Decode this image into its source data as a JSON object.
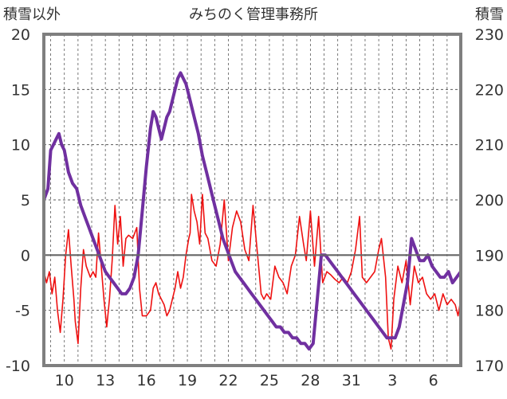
{
  "chart_data": {
    "type": "line",
    "title": "みちのく管理事務所",
    "left_axis_label": "積雪以外",
    "right_axis_label": "積雪",
    "left_ylim": [
      -10,
      20
    ],
    "right_ylim": [
      170,
      230
    ],
    "left_ticks": [
      "20",
      "15",
      "10",
      "5",
      "0",
      "-5",
      "-10"
    ],
    "right_ticks": [
      "230",
      "220",
      "210",
      "200",
      "190",
      "180",
      "170"
    ],
    "x_ticks": [
      "10",
      "13",
      "16",
      "19",
      "22",
      "25",
      "28",
      "31",
      "3",
      "6"
    ],
    "x_tick_days": [
      1.5,
      4.5,
      7.5,
      10.5,
      13.5,
      16.5,
      19.5,
      22.5,
      25.5,
      28.5
    ],
    "x_range_days": [
      0,
      30.5
    ],
    "grid": true,
    "colors": {
      "temperature": "#ee1111",
      "snow_depth": "#7030a0",
      "axis": "#7f7f7f",
      "grid": "#595959"
    },
    "series": [
      {
        "name": "積雪以外",
        "axis": "left",
        "points": [
          [
            0.0,
            -1.5
          ],
          [
            0.2,
            -2.5
          ],
          [
            0.4,
            -1.5
          ],
          [
            0.6,
            -3.5
          ],
          [
            0.8,
            -2.0
          ],
          [
            1.0,
            -5.0
          ],
          [
            1.2,
            -7.0
          ],
          [
            1.4,
            -4.0
          ],
          [
            1.6,
            0.0
          ],
          [
            1.8,
            2.3
          ],
          [
            2.0,
            -1.0
          ],
          [
            2.2,
            -4.0
          ],
          [
            2.3,
            -6.0
          ],
          [
            2.5,
            -8.0
          ],
          [
            2.7,
            -3.0
          ],
          [
            2.9,
            0.5
          ],
          [
            3.1,
            -1.0
          ],
          [
            3.4,
            -2.0
          ],
          [
            3.6,
            -1.5
          ],
          [
            3.8,
            -2.0
          ],
          [
            4.0,
            2.0
          ],
          [
            4.2,
            -1.0
          ],
          [
            4.4,
            -4.0
          ],
          [
            4.6,
            -6.5
          ],
          [
            4.8,
            -4.0
          ],
          [
            5.0,
            -0.5
          ],
          [
            5.2,
            4.5
          ],
          [
            5.4,
            1.0
          ],
          [
            5.6,
            3.5
          ],
          [
            5.8,
            -1.0
          ],
          [
            6.0,
            1.5
          ],
          [
            6.2,
            1.8
          ],
          [
            6.5,
            1.5
          ],
          [
            6.8,
            2.5
          ],
          [
            7.0,
            -3.0
          ],
          [
            7.2,
            -5.5
          ],
          [
            7.5,
            -5.5
          ],
          [
            7.8,
            -5.0
          ],
          [
            8.0,
            -3.0
          ],
          [
            8.2,
            -2.5
          ],
          [
            8.4,
            -3.5
          ],
          [
            8.6,
            -4.0
          ],
          [
            8.8,
            -4.5
          ],
          [
            9.0,
            -5.5
          ],
          [
            9.2,
            -5.0
          ],
          [
            9.4,
            -4.0
          ],
          [
            9.6,
            -3.0
          ],
          [
            9.8,
            -1.5
          ],
          [
            10.0,
            -3.0
          ],
          [
            10.2,
            -2.0
          ],
          [
            10.4,
            0.0
          ],
          [
            10.6,
            1.5
          ],
          [
            10.7,
            2.0
          ],
          [
            10.8,
            5.5
          ],
          [
            11.0,
            4.0
          ],
          [
            11.2,
            3.0
          ],
          [
            11.4,
            1.0
          ],
          [
            11.6,
            5.5
          ],
          [
            11.8,
            2.0
          ],
          [
            12.0,
            1.5
          ],
          [
            12.3,
            -0.5
          ],
          [
            12.6,
            -1.0
          ],
          [
            12.9,
            1.0
          ],
          [
            13.2,
            5.0
          ],
          [
            13.5,
            -0.5
          ],
          [
            13.8,
            2.5
          ],
          [
            14.1,
            4.0
          ],
          [
            14.4,
            3.0
          ],
          [
            14.7,
            0.5
          ],
          [
            15.0,
            -0.5
          ],
          [
            15.3,
            4.5
          ],
          [
            15.6,
            0.5
          ],
          [
            15.9,
            -3.5
          ],
          [
            16.1,
            -4.0
          ],
          [
            16.3,
            -3.5
          ],
          [
            16.6,
            -4.0
          ],
          [
            16.9,
            -1.0
          ],
          [
            17.2,
            -2.0
          ],
          [
            17.5,
            -2.5
          ],
          [
            17.8,
            -3.5
          ],
          [
            18.1,
            -1.0
          ],
          [
            18.4,
            0.0
          ],
          [
            18.7,
            3.5
          ],
          [
            19.0,
            1.0
          ],
          [
            19.2,
            -0.5
          ],
          [
            19.5,
            4.0
          ],
          [
            19.8,
            -1.0
          ],
          [
            20.1,
            3.5
          ],
          [
            20.4,
            -2.5
          ],
          [
            20.7,
            -1.5
          ],
          [
            21.0,
            -1.8
          ],
          [
            21.3,
            -2.2
          ],
          [
            21.6,
            -2.5
          ],
          [
            21.9,
            -2.0
          ],
          [
            22.2,
            -2.5
          ],
          [
            22.5,
            -1.5
          ],
          [
            22.8,
            0.5
          ],
          [
            23.1,
            3.5
          ],
          [
            23.3,
            -2.0
          ],
          [
            23.6,
            -2.5
          ],
          [
            23.9,
            -2.0
          ],
          [
            24.2,
            -1.5
          ],
          [
            24.5,
            0.5
          ],
          [
            24.7,
            1.5
          ],
          [
            25.0,
            -2.0
          ],
          [
            25.2,
            -7.5
          ],
          [
            25.4,
            -8.5
          ],
          [
            25.6,
            -4.0
          ],
          [
            25.9,
            -1.0
          ],
          [
            26.2,
            -2.5
          ],
          [
            26.5,
            -0.5
          ],
          [
            26.8,
            -4.5
          ],
          [
            27.1,
            -1.0
          ],
          [
            27.4,
            -2.5
          ],
          [
            27.7,
            -2.0
          ],
          [
            28.0,
            -3.5
          ],
          [
            28.3,
            -4.0
          ],
          [
            28.6,
            -3.5
          ],
          [
            28.9,
            -5.0
          ],
          [
            29.2,
            -3.5
          ],
          [
            29.5,
            -4.5
          ],
          [
            29.8,
            -4.0
          ],
          [
            30.1,
            -4.5
          ],
          [
            30.3,
            -5.5
          ],
          [
            30.5,
            -4.0
          ]
        ]
      },
      {
        "name": "積雪",
        "axis": "right",
        "points": [
          [
            0.0,
            200
          ],
          [
            0.3,
            202
          ],
          [
            0.5,
            209
          ],
          [
            0.7,
            210
          ],
          [
            0.9,
            211
          ],
          [
            1.1,
            212
          ],
          [
            1.3,
            210
          ],
          [
            1.5,
            209
          ],
          [
            1.8,
            205
          ],
          [
            2.1,
            203
          ],
          [
            2.4,
            202
          ],
          [
            2.7,
            199
          ],
          [
            3.0,
            197
          ],
          [
            3.3,
            195
          ],
          [
            3.6,
            193
          ],
          [
            3.9,
            191
          ],
          [
            4.2,
            189
          ],
          [
            4.5,
            187
          ],
          [
            4.8,
            186
          ],
          [
            5.1,
            185
          ],
          [
            5.4,
            184
          ],
          [
            5.7,
            183
          ],
          [
            6.0,
            183
          ],
          [
            6.3,
            184
          ],
          [
            6.6,
            186
          ],
          [
            6.9,
            190
          ],
          [
            7.2,
            198
          ],
          [
            7.5,
            206
          ],
          [
            7.8,
            213
          ],
          [
            8.0,
            216
          ],
          [
            8.2,
            215
          ],
          [
            8.4,
            213
          ],
          [
            8.6,
            211
          ],
          [
            8.8,
            213
          ],
          [
            9.0,
            215
          ],
          [
            9.2,
            216
          ],
          [
            9.4,
            218
          ],
          [
            9.6,
            220
          ],
          [
            9.8,
            222
          ],
          [
            10.0,
            223
          ],
          [
            10.2,
            222
          ],
          [
            10.4,
            221
          ],
          [
            10.6,
            219
          ],
          [
            10.8,
            217
          ],
          [
            11.0,
            215
          ],
          [
            11.3,
            212
          ],
          [
            11.6,
            208
          ],
          [
            11.9,
            205
          ],
          [
            12.2,
            202
          ],
          [
            12.5,
            199
          ],
          [
            12.8,
            196
          ],
          [
            13.1,
            193
          ],
          [
            13.4,
            191
          ],
          [
            13.7,
            189
          ],
          [
            14.0,
            187
          ],
          [
            14.3,
            186
          ],
          [
            14.6,
            185
          ],
          [
            14.9,
            184
          ],
          [
            15.2,
            183
          ],
          [
            15.5,
            182
          ],
          [
            15.8,
            181
          ],
          [
            16.1,
            180
          ],
          [
            16.4,
            179
          ],
          [
            16.7,
            178
          ],
          [
            17.0,
            177
          ],
          [
            17.3,
            177
          ],
          [
            17.6,
            176
          ],
          [
            17.9,
            176
          ],
          [
            18.2,
            175
          ],
          [
            18.5,
            175
          ],
          [
            18.8,
            174
          ],
          [
            19.1,
            174
          ],
          [
            19.4,
            173
          ],
          [
            19.7,
            174
          ],
          [
            20.0,
            182
          ],
          [
            20.3,
            190
          ],
          [
            20.6,
            190
          ],
          [
            20.9,
            189
          ],
          [
            21.2,
            188
          ],
          [
            21.5,
            187
          ],
          [
            21.8,
            186
          ],
          [
            22.1,
            185
          ],
          [
            22.4,
            184
          ],
          [
            22.7,
            183
          ],
          [
            23.0,
            182
          ],
          [
            23.3,
            181
          ],
          [
            23.6,
            180
          ],
          [
            23.9,
            179
          ],
          [
            24.2,
            178
          ],
          [
            24.5,
            177
          ],
          [
            24.8,
            176
          ],
          [
            25.1,
            175
          ],
          [
            25.4,
            175
          ],
          [
            25.7,
            175
          ],
          [
            26.0,
            177
          ],
          [
            26.3,
            181
          ],
          [
            26.6,
            185
          ],
          [
            26.9,
            193
          ],
          [
            27.2,
            191
          ],
          [
            27.5,
            189
          ],
          [
            27.8,
            189
          ],
          [
            28.1,
            190
          ],
          [
            28.4,
            188
          ],
          [
            28.7,
            187
          ],
          [
            29.0,
            186
          ],
          [
            29.3,
            186
          ],
          [
            29.6,
            187
          ],
          [
            29.9,
            185
          ],
          [
            30.2,
            186
          ],
          [
            30.5,
            187
          ]
        ]
      }
    ]
  }
}
